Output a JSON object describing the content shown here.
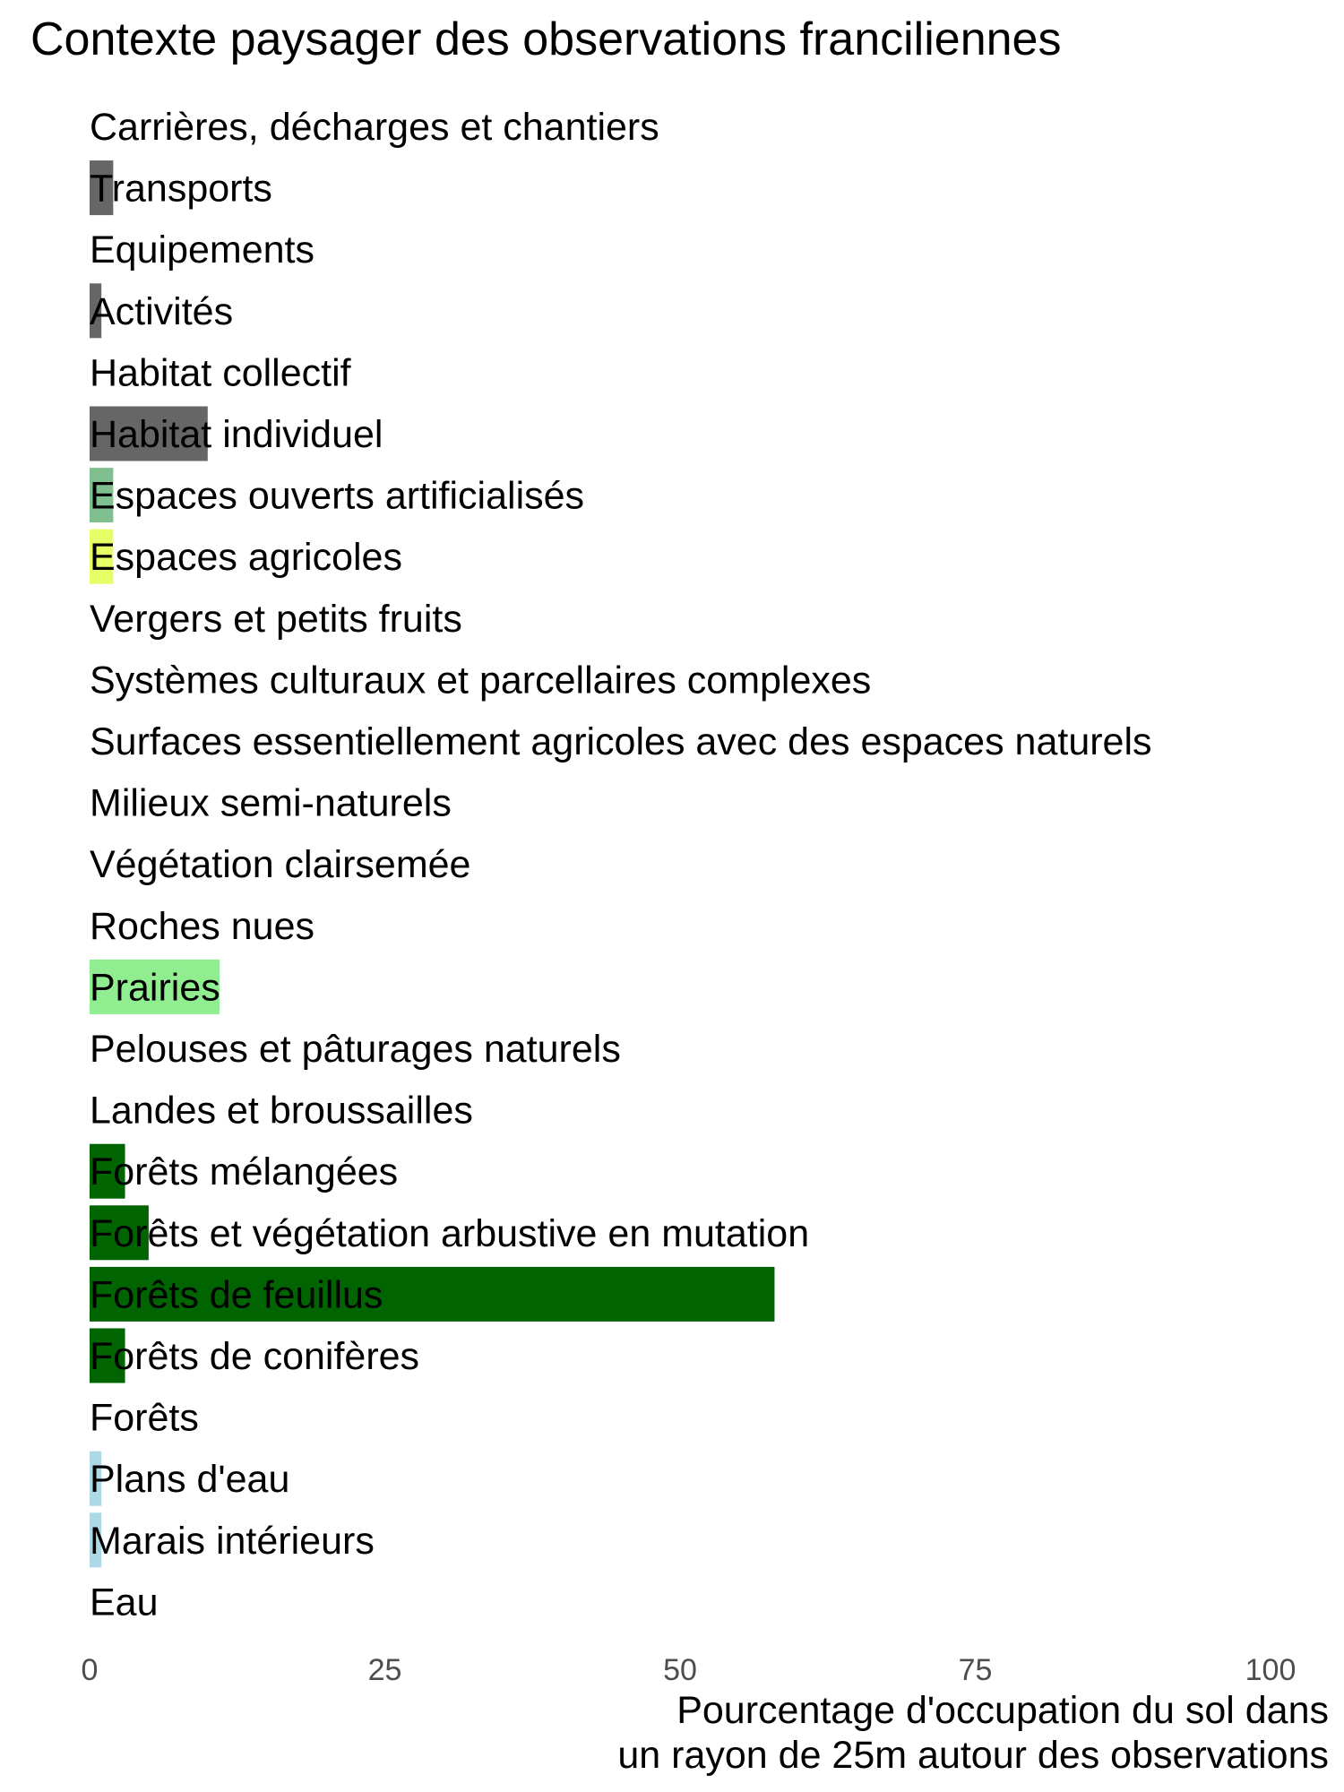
{
  "title": "Contexte paysager des observations franciliennes",
  "chart_data": {
    "type": "bar",
    "orientation": "horizontal",
    "title": "Contexte paysager des observations franciliennes",
    "xlabel_lines": [
      "Pourcentage d'occupation du sol dans",
      "un rayon de 25m autour des observations"
    ],
    "ylabel": "",
    "xlim": [
      0,
      100
    ],
    "xticks": [
      0,
      25,
      50,
      75,
      100
    ],
    "grid": false,
    "categories": [
      "Carrières, décharges et chantiers",
      "Transports",
      "Equipements",
      "Activités",
      "Habitat collectif",
      "Habitat individuel",
      "Espaces ouverts artificialisés",
      "Espaces agricoles",
      "Vergers et petits fruits",
      "Systèmes culturaux et parcellaires complexes",
      "Surfaces essentiellement agricoles avec des espaces naturels",
      "Milieux semi-naturels",
      "Végétation clairsemée",
      "Roches nues",
      "Prairies",
      "Pelouses et pâturages naturels",
      "Landes et broussailles",
      "Forêts mélangées",
      "Forêts et végétation arbustive en mutation",
      "Forêts de feuillus",
      "Forêts de conifères",
      "Forêts",
      "Plans d'eau",
      "Marais intérieurs",
      "Eau"
    ],
    "values": [
      0,
      2,
      0,
      1,
      0,
      10,
      2,
      2,
      0,
      0,
      0,
      0,
      0,
      0,
      11,
      0,
      0,
      3,
      5,
      58,
      3,
      0,
      1,
      1,
      0
    ],
    "colors": [
      "#666666",
      "#666666",
      "#666666",
      "#666666",
      "#666666",
      "#666666",
      "#80bf8f",
      "#e6ff66",
      "#e6ff66",
      "#e6ff66",
      "#e6ff66",
      "#90ee90",
      "#90ee90",
      "#90ee90",
      "#90ee90",
      "#90ee90",
      "#90ee90",
      "#006400",
      "#006400",
      "#006400",
      "#006400",
      "#006400",
      "#add8e6",
      "#add8e6",
      "#add8e6"
    ]
  }
}
